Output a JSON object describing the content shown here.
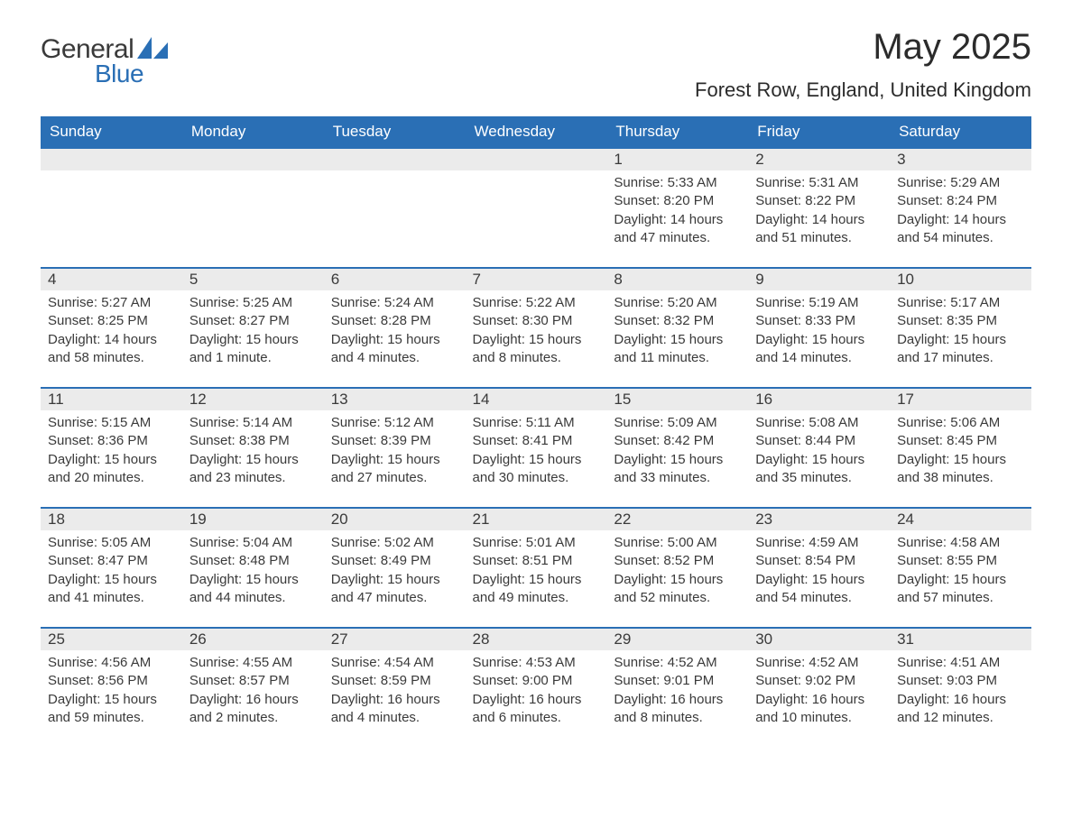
{
  "brand": {
    "word1": "General",
    "word2": "Blue",
    "color_text": "#3a3a3a",
    "color_blue": "#2a6fb5"
  },
  "title": {
    "month_year": "May 2025",
    "location": "Forest Row, England, United Kingdom"
  },
  "colors": {
    "header_bg": "#2a6fb5",
    "header_text": "#ffffff",
    "daynum_bg": "#ebebeb",
    "row_border": "#2a6fb5",
    "body_text": "#3a3a3a",
    "page_bg": "#ffffff"
  },
  "weekdays": [
    "Sunday",
    "Monday",
    "Tuesday",
    "Wednesday",
    "Thursday",
    "Friday",
    "Saturday"
  ],
  "weeks": [
    [
      {
        "n": "",
        "sunrise": "",
        "sunset": "",
        "daylight": ""
      },
      {
        "n": "",
        "sunrise": "",
        "sunset": "",
        "daylight": ""
      },
      {
        "n": "",
        "sunrise": "",
        "sunset": "",
        "daylight": ""
      },
      {
        "n": "",
        "sunrise": "",
        "sunset": "",
        "daylight": ""
      },
      {
        "n": "1",
        "sunrise": "Sunrise: 5:33 AM",
        "sunset": "Sunset: 8:20 PM",
        "daylight": "Daylight: 14 hours and 47 minutes."
      },
      {
        "n": "2",
        "sunrise": "Sunrise: 5:31 AM",
        "sunset": "Sunset: 8:22 PM",
        "daylight": "Daylight: 14 hours and 51 minutes."
      },
      {
        "n": "3",
        "sunrise": "Sunrise: 5:29 AM",
        "sunset": "Sunset: 8:24 PM",
        "daylight": "Daylight: 14 hours and 54 minutes."
      }
    ],
    [
      {
        "n": "4",
        "sunrise": "Sunrise: 5:27 AM",
        "sunset": "Sunset: 8:25 PM",
        "daylight": "Daylight: 14 hours and 58 minutes."
      },
      {
        "n": "5",
        "sunrise": "Sunrise: 5:25 AM",
        "sunset": "Sunset: 8:27 PM",
        "daylight": "Daylight: 15 hours and 1 minute."
      },
      {
        "n": "6",
        "sunrise": "Sunrise: 5:24 AM",
        "sunset": "Sunset: 8:28 PM",
        "daylight": "Daylight: 15 hours and 4 minutes."
      },
      {
        "n": "7",
        "sunrise": "Sunrise: 5:22 AM",
        "sunset": "Sunset: 8:30 PM",
        "daylight": "Daylight: 15 hours and 8 minutes."
      },
      {
        "n": "8",
        "sunrise": "Sunrise: 5:20 AM",
        "sunset": "Sunset: 8:32 PM",
        "daylight": "Daylight: 15 hours and 11 minutes."
      },
      {
        "n": "9",
        "sunrise": "Sunrise: 5:19 AM",
        "sunset": "Sunset: 8:33 PM",
        "daylight": "Daylight: 15 hours and 14 minutes."
      },
      {
        "n": "10",
        "sunrise": "Sunrise: 5:17 AM",
        "sunset": "Sunset: 8:35 PM",
        "daylight": "Daylight: 15 hours and 17 minutes."
      }
    ],
    [
      {
        "n": "11",
        "sunrise": "Sunrise: 5:15 AM",
        "sunset": "Sunset: 8:36 PM",
        "daylight": "Daylight: 15 hours and 20 minutes."
      },
      {
        "n": "12",
        "sunrise": "Sunrise: 5:14 AM",
        "sunset": "Sunset: 8:38 PM",
        "daylight": "Daylight: 15 hours and 23 minutes."
      },
      {
        "n": "13",
        "sunrise": "Sunrise: 5:12 AM",
        "sunset": "Sunset: 8:39 PM",
        "daylight": "Daylight: 15 hours and 27 minutes."
      },
      {
        "n": "14",
        "sunrise": "Sunrise: 5:11 AM",
        "sunset": "Sunset: 8:41 PM",
        "daylight": "Daylight: 15 hours and 30 minutes."
      },
      {
        "n": "15",
        "sunrise": "Sunrise: 5:09 AM",
        "sunset": "Sunset: 8:42 PM",
        "daylight": "Daylight: 15 hours and 33 minutes."
      },
      {
        "n": "16",
        "sunrise": "Sunrise: 5:08 AM",
        "sunset": "Sunset: 8:44 PM",
        "daylight": "Daylight: 15 hours and 35 minutes."
      },
      {
        "n": "17",
        "sunrise": "Sunrise: 5:06 AM",
        "sunset": "Sunset: 8:45 PM",
        "daylight": "Daylight: 15 hours and 38 minutes."
      }
    ],
    [
      {
        "n": "18",
        "sunrise": "Sunrise: 5:05 AM",
        "sunset": "Sunset: 8:47 PM",
        "daylight": "Daylight: 15 hours and 41 minutes."
      },
      {
        "n": "19",
        "sunrise": "Sunrise: 5:04 AM",
        "sunset": "Sunset: 8:48 PM",
        "daylight": "Daylight: 15 hours and 44 minutes."
      },
      {
        "n": "20",
        "sunrise": "Sunrise: 5:02 AM",
        "sunset": "Sunset: 8:49 PM",
        "daylight": "Daylight: 15 hours and 47 minutes."
      },
      {
        "n": "21",
        "sunrise": "Sunrise: 5:01 AM",
        "sunset": "Sunset: 8:51 PM",
        "daylight": "Daylight: 15 hours and 49 minutes."
      },
      {
        "n": "22",
        "sunrise": "Sunrise: 5:00 AM",
        "sunset": "Sunset: 8:52 PM",
        "daylight": "Daylight: 15 hours and 52 minutes."
      },
      {
        "n": "23",
        "sunrise": "Sunrise: 4:59 AM",
        "sunset": "Sunset: 8:54 PM",
        "daylight": "Daylight: 15 hours and 54 minutes."
      },
      {
        "n": "24",
        "sunrise": "Sunrise: 4:58 AM",
        "sunset": "Sunset: 8:55 PM",
        "daylight": "Daylight: 15 hours and 57 minutes."
      }
    ],
    [
      {
        "n": "25",
        "sunrise": "Sunrise: 4:56 AM",
        "sunset": "Sunset: 8:56 PM",
        "daylight": "Daylight: 15 hours and 59 minutes."
      },
      {
        "n": "26",
        "sunrise": "Sunrise: 4:55 AM",
        "sunset": "Sunset: 8:57 PM",
        "daylight": "Daylight: 16 hours and 2 minutes."
      },
      {
        "n": "27",
        "sunrise": "Sunrise: 4:54 AM",
        "sunset": "Sunset: 8:59 PM",
        "daylight": "Daylight: 16 hours and 4 minutes."
      },
      {
        "n": "28",
        "sunrise": "Sunrise: 4:53 AM",
        "sunset": "Sunset: 9:00 PM",
        "daylight": "Daylight: 16 hours and 6 minutes."
      },
      {
        "n": "29",
        "sunrise": "Sunrise: 4:52 AM",
        "sunset": "Sunset: 9:01 PM",
        "daylight": "Daylight: 16 hours and 8 minutes."
      },
      {
        "n": "30",
        "sunrise": "Sunrise: 4:52 AM",
        "sunset": "Sunset: 9:02 PM",
        "daylight": "Daylight: 16 hours and 10 minutes."
      },
      {
        "n": "31",
        "sunrise": "Sunrise: 4:51 AM",
        "sunset": "Sunset: 9:03 PM",
        "daylight": "Daylight: 16 hours and 12 minutes."
      }
    ]
  ]
}
